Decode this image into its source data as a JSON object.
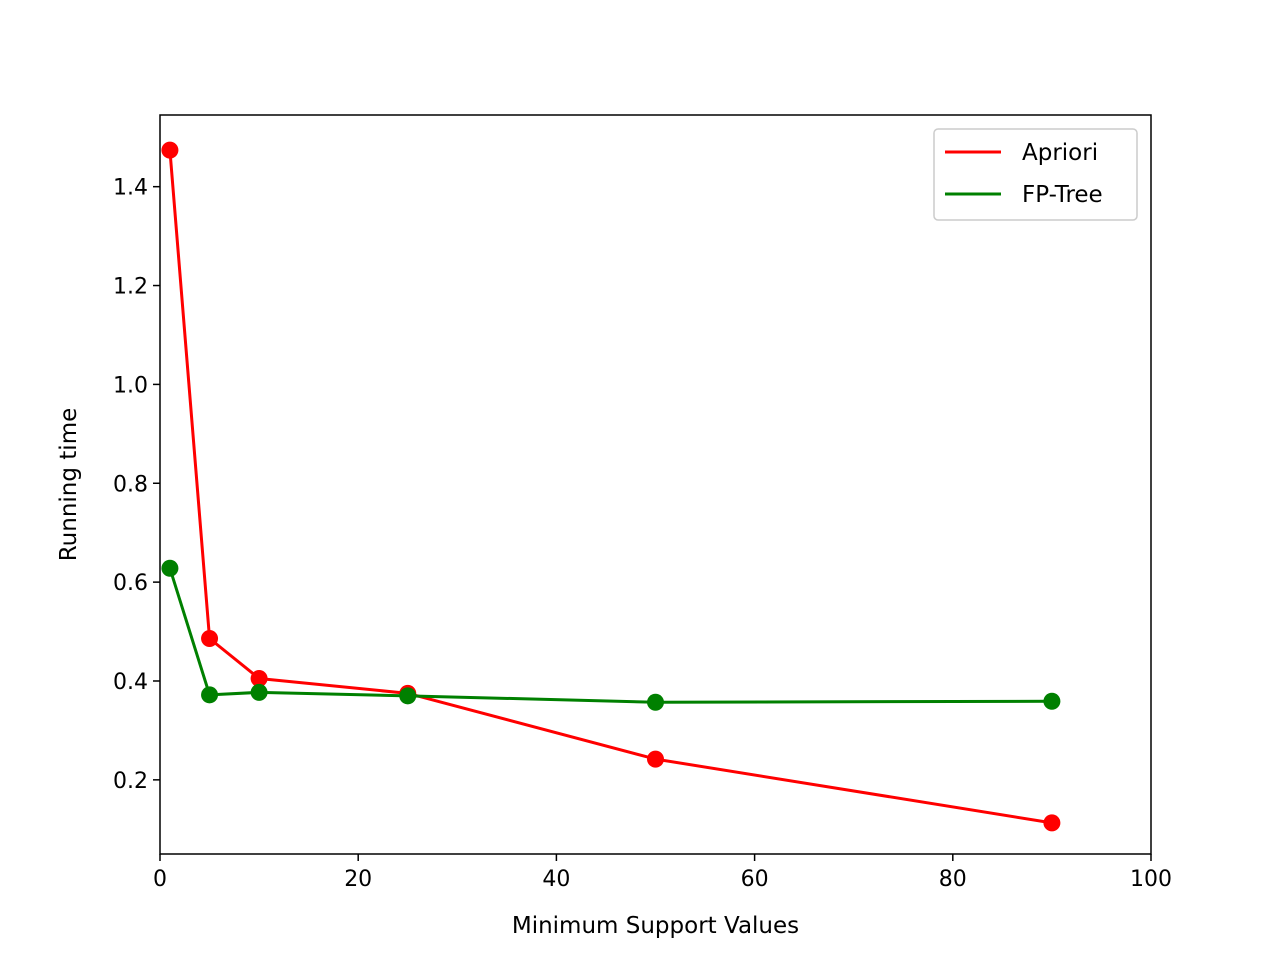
{
  "chart_data": {
    "type": "line",
    "title": "",
    "xlabel": "Minimum Support Values",
    "ylabel": "Running time",
    "xlim": [
      0,
      100
    ],
    "ylim": [
      0.05,
      1.545
    ],
    "xticks": [
      0,
      20,
      40,
      60,
      80,
      100
    ],
    "yticks": [
      0.2,
      0.4,
      0.6,
      0.8,
      1.0,
      1.2,
      1.4
    ],
    "xtick_labels": [
      "0",
      "20",
      "40",
      "60",
      "80",
      "100"
    ],
    "ytick_labels": [
      "0.2",
      "0.4",
      "0.6",
      "0.8",
      "1.0",
      "1.2",
      "1.4"
    ],
    "x": [
      1,
      5,
      10,
      25,
      50,
      90
    ],
    "series": [
      {
        "name": "Apriori",
        "color": "#ff0000",
        "values": [
          1.474,
          0.486,
          0.405,
          0.375,
          0.242,
          0.113
        ]
      },
      {
        "name": "FP-Tree",
        "color": "#008000",
        "values": [
          0.628,
          0.372,
          0.377,
          0.37,
          0.357,
          0.359
        ]
      }
    ],
    "grid": false,
    "legend": "top-right"
  }
}
